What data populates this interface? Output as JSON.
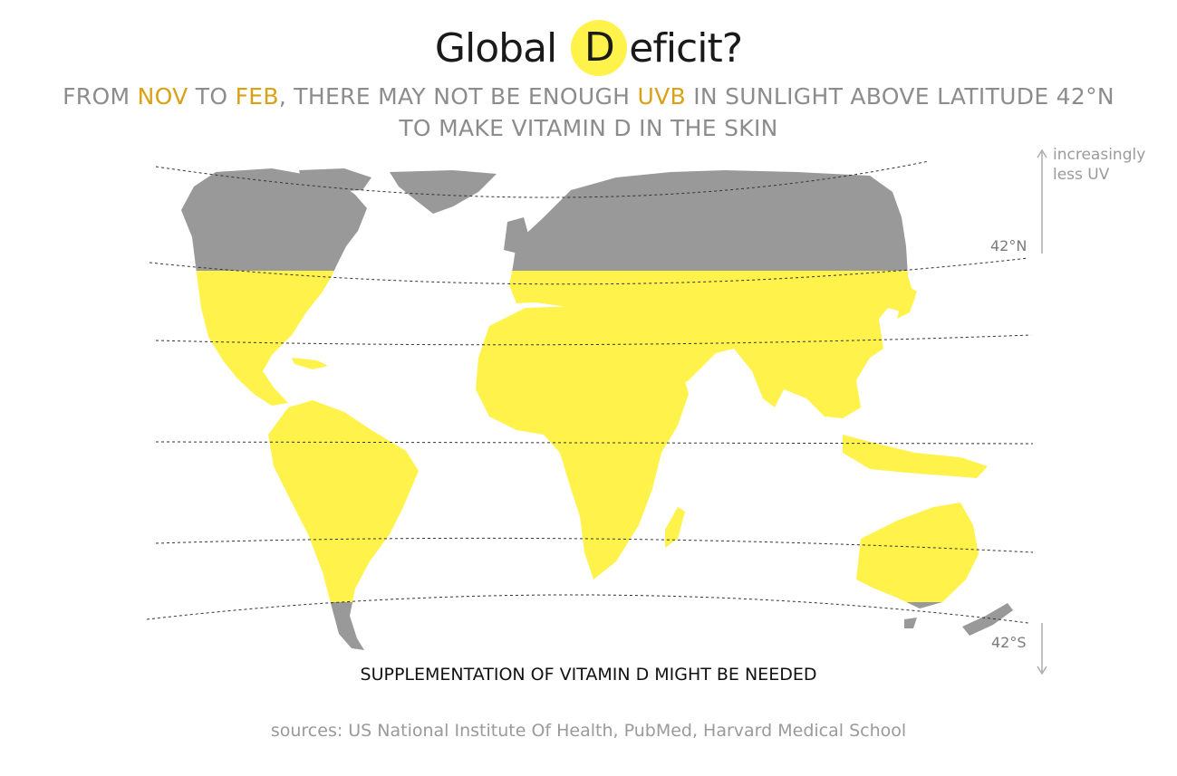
{
  "title": {
    "prefix": "Global",
    "badge_letter": "D",
    "suffix": "eficit?"
  },
  "subtitle": {
    "line1": [
      {
        "text": "FROM ",
        "highlight": false
      },
      {
        "text": "NOV",
        "highlight": true
      },
      {
        "text": " TO ",
        "highlight": false
      },
      {
        "text": "FEB",
        "highlight": true
      },
      {
        "text": ", THERE MAY NOT BE ENOUGH ",
        "highlight": false
      },
      {
        "text": "UVB",
        "highlight": true
      },
      {
        "text": " IN SUNLIGHT ABOVE LATITUDE 42°N",
        "highlight": false
      }
    ],
    "line2": "TO MAKE VITAMIN D IN THE SKIN"
  },
  "note": {
    "line1": "increasingly",
    "line2": "less UV"
  },
  "latitudes": {
    "north_label": "42°N",
    "south_label": "42°S"
  },
  "callout": "SUPPLEMENTATION OF VITAMIN D MIGHT BE NEEDED",
  "sources": "sources: US National Institute Of Health, PubMed, Harvard Medical School",
  "colors": {
    "deficit_land": "#999999",
    "sufficient_land": "#fff24a",
    "highlight_text": "#d9a215",
    "subtitle_text": "#8c8c8c"
  }
}
